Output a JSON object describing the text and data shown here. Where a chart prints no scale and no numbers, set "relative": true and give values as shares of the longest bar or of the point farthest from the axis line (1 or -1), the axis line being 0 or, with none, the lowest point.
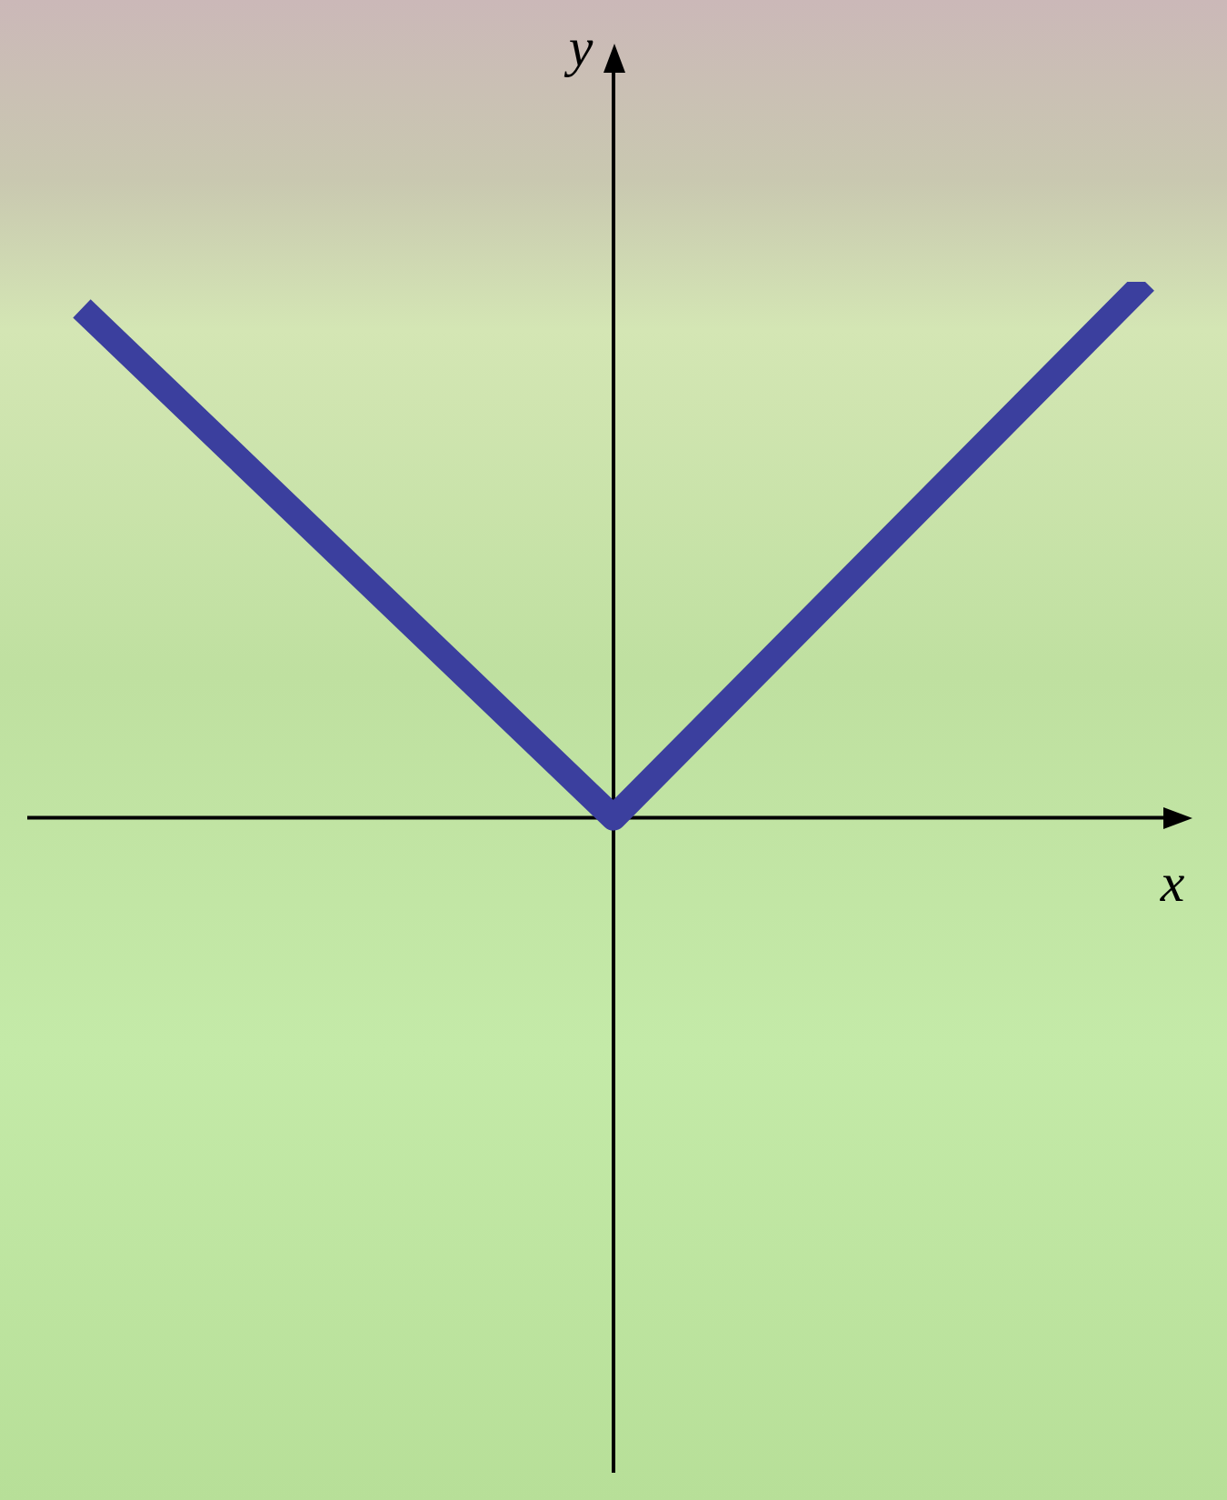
{
  "chart_data": {
    "type": "line",
    "relative": true,
    "xlabel": "x",
    "ylabel": "y",
    "categories": [
      null,
      null,
      null
    ],
    "series": [
      {
        "color": "#3b3f9e",
        "values": [
          0.95,
          0,
          1
        ]
      }
    ],
    "marker": "none",
    "line_style": "solid",
    "grid": false,
    "legend": false
  }
}
